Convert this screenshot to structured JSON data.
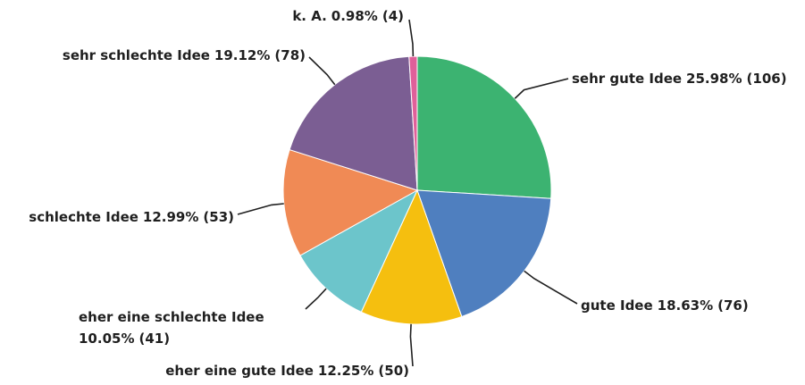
{
  "chart_data": {
    "type": "pie",
    "categories": [
      "sehr gute Idee",
      "gute Idee",
      "eher eine gute Idee",
      "eher eine schlechte Idee",
      "schlechte Idee",
      "sehr schlechte Idee",
      "k. A."
    ],
    "values": [
      25.98,
      18.63,
      12.25,
      10.05,
      12.99,
      19.12,
      0.98
    ],
    "value_labels": [
      "25.98%",
      "18.63%",
      "12.25%",
      "10.05%",
      "12.99%",
      "19.12%",
      "0.98%"
    ],
    "counts": [
      106,
      76,
      50,
      41,
      53,
      78,
      4
    ],
    "count_labels": [
      "(106)",
      "(76)",
      "(50)",
      "(41)",
      "(53)",
      "(78)",
      "(4)"
    ],
    "colors": [
      "#3cb371",
      "#4f7fbf",
      "#f5bf0f",
      "#6cc5cb",
      "#f08a55",
      "#7b5e93",
      "#e0609a"
    ]
  }
}
